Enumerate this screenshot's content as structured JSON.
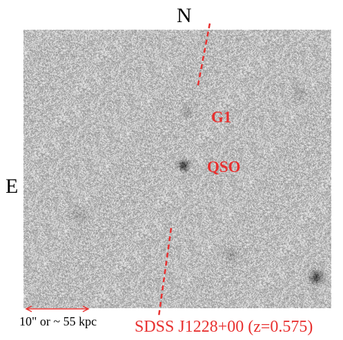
{
  "image": {
    "type": "grayscale astronomical field image",
    "background_color": "#bdbdbd",
    "label_color": "#e8302f"
  },
  "orientation": {
    "north_label": "N",
    "east_label": "E"
  },
  "objects": [
    {
      "name": "G1",
      "label": "G1"
    },
    {
      "name": "QSO",
      "label": "QSO"
    }
  ],
  "scale_bar": {
    "text": "10\" or ~ 55 kpc"
  },
  "caption": "SDSS J1228+00 (z=0.575)"
}
